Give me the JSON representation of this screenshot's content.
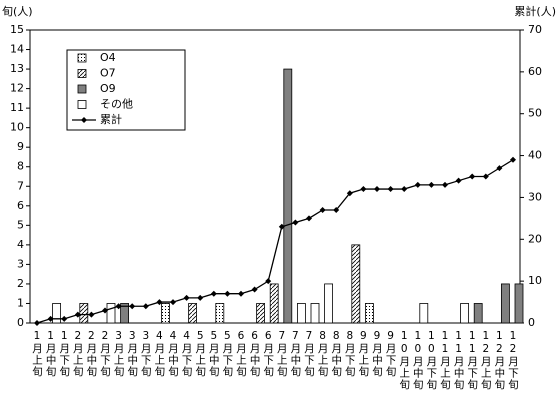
{
  "chart_data": {
    "type": "bar-line",
    "y_label": "旬(人)",
    "y2_label": "累計(人)",
    "categories": [
      "1月上旬",
      "1月中旬",
      "1月下旬",
      "2月上旬",
      "2月中旬",
      "2月下旬",
      "3月上旬",
      "3月中旬",
      "3月下旬",
      "4月上旬",
      "4月中旬",
      "4月下旬",
      "5月上旬",
      "5月中旬",
      "5月下旬",
      "6月上旬",
      "6月中旬",
      "6月下旬",
      "7月上旬",
      "7月中旬",
      "7月下旬",
      "8月上旬",
      "8月中旬",
      "8月下旬",
      "9月上旬",
      "9月中旬",
      "9月下旬",
      "10月上旬",
      "10月中旬",
      "10月下旬",
      "11月上旬",
      "11月中旬",
      "11月下旬",
      "12月上旬",
      "12月中旬",
      "12月下旬"
    ],
    "series": [
      {
        "name": "O4",
        "color": "#ffffff",
        "pattern": "dots",
        "values": [
          0,
          0,
          0,
          0,
          0,
          0,
          0,
          0,
          0,
          1,
          0,
          0,
          0,
          1,
          0,
          0,
          0,
          0,
          0,
          0,
          0,
          0,
          0,
          0,
          1,
          0,
          0,
          0,
          0,
          0,
          0,
          0,
          0,
          0,
          0,
          0
        ]
      },
      {
        "name": "O7",
        "color": "#ffffff",
        "pattern": "hatch",
        "values": [
          0,
          0,
          0,
          1,
          0,
          0,
          0,
          0,
          0,
          0,
          0,
          1,
          0,
          0,
          0,
          0,
          1,
          2,
          0,
          0,
          0,
          0,
          0,
          4,
          0,
          0,
          0,
          0,
          0,
          0,
          0,
          0,
          0,
          0,
          0,
          0
        ]
      },
      {
        "name": "O9",
        "color": "#808080",
        "values": [
          0,
          0,
          0,
          0,
          0,
          0,
          1,
          0,
          0,
          0,
          0,
          0,
          0,
          0,
          0,
          0,
          0,
          0,
          13,
          0,
          0,
          0,
          0,
          0,
          0,
          0,
          0,
          0,
          0,
          0,
          0,
          0,
          1,
          0,
          2,
          2
        ]
      },
      {
        "name": "その他",
        "color": "#ffffff",
        "values": [
          0,
          1,
          0,
          0,
          0,
          1,
          0,
          0,
          0,
          0,
          0,
          0,
          0,
          0,
          0,
          0,
          0,
          0,
          0,
          1,
          1,
          2,
          0,
          0,
          0,
          0,
          0,
          0,
          1,
          0,
          0,
          1,
          0,
          0,
          0,
          0
        ]
      },
      {
        "name": "累計",
        "type": "line",
        "axis": "y2",
        "color": "#000000",
        "values": [
          0,
          1,
          1,
          2,
          2,
          3,
          4,
          4,
          4,
          5,
          5,
          6,
          6,
          7,
          7,
          7,
          8,
          10,
          23,
          24,
          25,
          27,
          27,
          31,
          32,
          32,
          32,
          32,
          33,
          33,
          33,
          34,
          35,
          35,
          37,
          39
        ]
      }
    ],
    "ylim": [
      0,
      15
    ],
    "yticks": [
      0,
      1,
      2,
      3,
      4,
      5,
      6,
      7,
      8,
      9,
      10,
      11,
      12,
      13,
      14,
      15
    ],
    "y2lim": [
      0,
      70
    ],
    "y2ticks": [
      0,
      10,
      20,
      30,
      40,
      50,
      60,
      70
    ]
  }
}
